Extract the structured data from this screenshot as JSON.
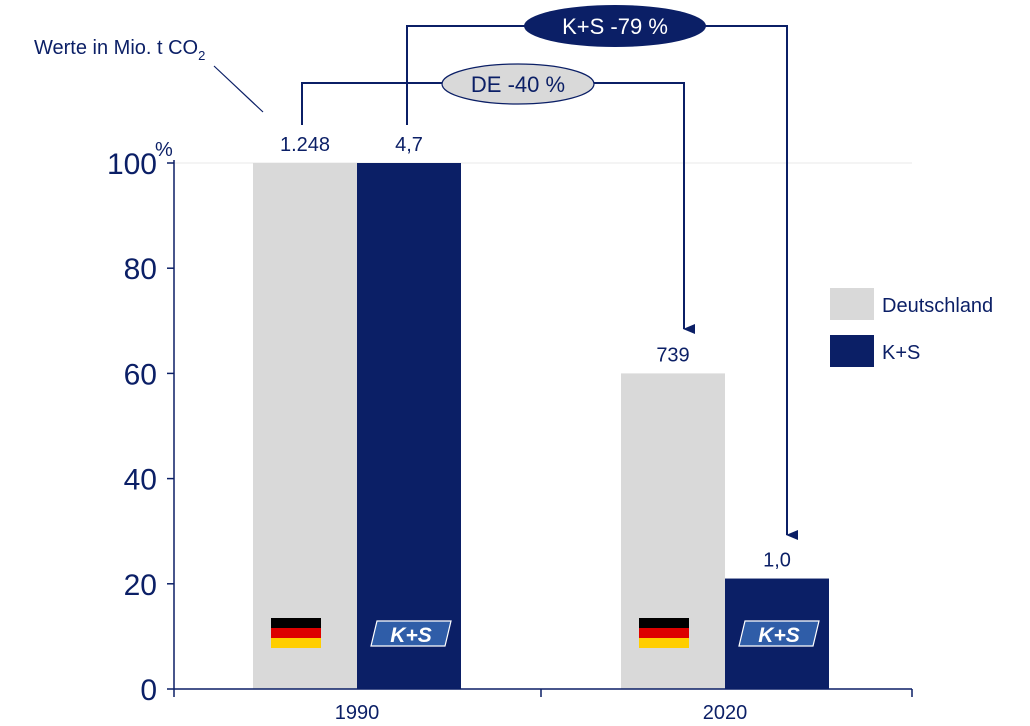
{
  "chart_data": {
    "type": "bar",
    "categories": [
      "1990",
      "2020"
    ],
    "series": [
      {
        "name": "Deutschland",
        "values": [
          100,
          60
        ],
        "labels": [
          "1.248",
          "739"
        ],
        "color": "#d9d9d9"
      },
      {
        "name": "K+S",
        "values": [
          100,
          21
        ],
        "labels": [
          "4,7",
          "1,0"
        ],
        "color": "#0b1f66"
      }
    ],
    "ylim": [
      0,
      100
    ],
    "yticks": [
      0,
      20,
      40,
      60,
      80,
      100
    ],
    "ytick_labels": [
      "0",
      "20",
      "40",
      "60",
      "80",
      "100"
    ],
    "yunit": "%",
    "legend_position": "right",
    "annotations": {
      "note_prefix": "Werte in Mio. t CO",
      "note_subscript": "2",
      "de_change": "DE -40 %",
      "ks_change": "K+S -79 %",
      "ks_logo_text": "K+S"
    },
    "colors": {
      "axis": "#0b1f66",
      "text": "#0b1f66",
      "de_bubble_fill": "#d9d9d9",
      "ks_bubble_fill": "#0b1f66",
      "flag_black": "#000000",
      "flag_red": "#dd0000",
      "flag_gold": "#ffce00"
    }
  }
}
